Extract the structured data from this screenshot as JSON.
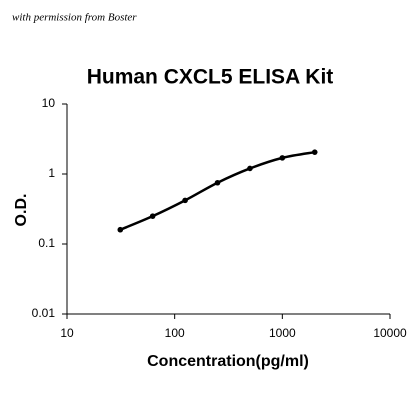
{
  "chart_data": {
    "type": "line",
    "annotation": "with permission from Boster",
    "title": "Human CXCL5 ELISA Kit",
    "x_label": "Concentration(pg/ml)",
    "y_label": "O.D.",
    "x": [
      31.25,
      62.5,
      125,
      250,
      500,
      1000,
      2000
    ],
    "series": [
      {
        "color": "#000000",
        "values": [
          0.16,
          0.25,
          0.42,
          0.75,
          1.2,
          1.7,
          2.05
        ]
      }
    ],
    "xscale": "log",
    "yscale": "log",
    "xlim": [
      10,
      10000
    ],
    "xticks": [
      10,
      100,
      1000,
      10000
    ],
    "ylim": [
      0.01,
      10
    ],
    "yticks": [
      0.01,
      0.1,
      1,
      10
    ],
    "grid": false
  }
}
